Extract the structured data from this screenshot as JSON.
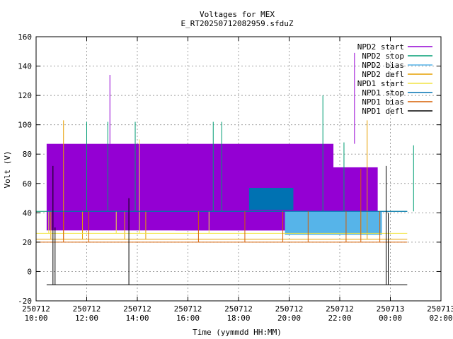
{
  "chart_data": {
    "type": "line",
    "title": "Voltages for MEX",
    "subtitle": "E_RT20250712082959.sfduZ",
    "xlabel": "Time (yymmdd HH:MM)",
    "ylabel": "Volt (V)",
    "xlim": [
      "2025-07-12 10:00",
      "2025-07-13 02:00"
    ],
    "ylim": [
      -20,
      160
    ],
    "grid": true,
    "legend_position": "top-right",
    "x_ticks": [
      {
        "date": "250712",
        "time": "10:00",
        "t": "2025-07-12 10:00"
      },
      {
        "date": "250712",
        "time": "12:00",
        "t": "2025-07-12 12:00"
      },
      {
        "date": "250712",
        "time": "14:00",
        "t": "2025-07-12 14:00"
      },
      {
        "date": "250712",
        "time": "16:00",
        "t": "2025-07-12 16:00"
      },
      {
        "date": "250712",
        "time": "18:00",
        "t": "2025-07-12 18:00"
      },
      {
        "date": "250712",
        "time": "20:00",
        "t": "2025-07-12 20:00"
      },
      {
        "date": "250712",
        "time": "22:00",
        "t": "2025-07-12 22:00"
      },
      {
        "date": "250713",
        "time": "00:00",
        "t": "2025-07-13 00:00"
      },
      {
        "date": "250713",
        "time": "02:00",
        "t": "2025-07-13 02:00"
      }
    ],
    "y_ticks": [
      -20,
      0,
      20,
      40,
      60,
      80,
      100,
      120,
      140,
      160
    ],
    "series": [
      {
        "name": "NPD2 start",
        "color": "#9400d3",
        "type": "band",
        "bands": [
          {
            "from": "2025-07-12 10:25",
            "to": "2025-07-12 21:45",
            "low": 28,
            "high": 87
          },
          {
            "from": "2025-07-12 15:30",
            "to": "2025-07-12 23:30",
            "low": 28,
            "high": 71
          }
        ],
        "spikes": [
          {
            "t": "2025-07-12 12:55",
            "v": 134
          },
          {
            "t": "2025-07-12 22:35",
            "v": 149
          }
        ]
      },
      {
        "name": "NPD2 stop",
        "color": "#009e73",
        "type": "spikes",
        "base": 41,
        "spikes": [
          {
            "t": "2025-07-12 12:00",
            "v": 102
          },
          {
            "t": "2025-07-12 12:50",
            "v": 102
          },
          {
            "t": "2025-07-12 13:55",
            "v": 102
          },
          {
            "t": "2025-07-12 17:00",
            "v": 102
          },
          {
            "t": "2025-07-12 17:20",
            "v": 102
          },
          {
            "t": "2025-07-12 21:20",
            "v": 120
          },
          {
            "t": "2025-07-12 22:10",
            "v": 88
          },
          {
            "t": "2025-07-13 00:55",
            "v": 86
          }
        ]
      },
      {
        "name": "NPD2 bias",
        "color": "#56b4e9",
        "type": "band",
        "bands": [
          {
            "from": "2025-07-12 19:50",
            "to": "2025-07-12 23:40",
            "low": 25,
            "high": 41
          }
        ],
        "spikes": []
      },
      {
        "name": "NPD2 defl",
        "color": "#e69f00",
        "type": "spikes",
        "base": 22,
        "spikes": [
          {
            "t": "2025-07-12 10:35",
            "v": 41
          },
          {
            "t": "2025-07-12 11:05",
            "v": 103
          },
          {
            "t": "2025-07-12 11:50",
            "v": 41
          },
          {
            "t": "2025-07-12 13:30",
            "v": 41
          },
          {
            "t": "2025-07-12 14:20",
            "v": 41
          },
          {
            "t": "2025-07-12 23:05",
            "v": 103
          }
        ]
      },
      {
        "name": "NPD1 start",
        "color": "#f0e442",
        "type": "spikes",
        "base": 26,
        "spikes": [
          {
            "t": "2025-07-12 10:30",
            "v": 41
          },
          {
            "t": "2025-07-12 13:10",
            "v": 41
          },
          {
            "t": "2025-07-12 14:05",
            "v": 90
          },
          {
            "t": "2025-07-12 16:50",
            "v": 41
          },
          {
            "t": "2025-07-12 22:50",
            "v": 41
          }
        ]
      },
      {
        "name": "NPD1 stop",
        "color": "#0072b2",
        "type": "band",
        "bands": [
          {
            "from": "2025-07-12 18:25",
            "to": "2025-07-12 20:10",
            "low": 42,
            "high": 57
          }
        ],
        "base": 41,
        "base_from": "2025-07-12 10:25",
        "base_to": "2025-07-13 00:40",
        "spikes": []
      },
      {
        "name": "NPD1 bias",
        "color": "#d55e00",
        "type": "spikes",
        "base": 20,
        "spikes": [
          {
            "t": "2025-07-12 11:05",
            "v": 41
          },
          {
            "t": "2025-07-12 12:05",
            "v": 41
          },
          {
            "t": "2025-07-12 16:25",
            "v": 41
          },
          {
            "t": "2025-07-12 18:15",
            "v": 41
          },
          {
            "t": "2025-07-12 19:45",
            "v": 41
          },
          {
            "t": "2025-07-12 20:45",
            "v": 41
          },
          {
            "t": "2025-07-12 22:50",
            "v": 70
          },
          {
            "t": "2025-07-12 22:15",
            "v": 41
          },
          {
            "t": "2025-07-12 23:35",
            "v": 41
          }
        ]
      },
      {
        "name": "NPD1 defl",
        "color": "#000000",
        "type": "spikes",
        "base": -9,
        "base_from": "2025-07-12 10:25",
        "base_to": "2025-07-13 00:40",
        "spikes": [
          {
            "t": "2025-07-12 10:40",
            "v": 72
          },
          {
            "t": "2025-07-12 10:45",
            "v": 30
          },
          {
            "t": "2025-07-12 13:40",
            "v": 50
          },
          {
            "t": "2025-07-12 23:50",
            "v": 72
          },
          {
            "t": "2025-07-12 23:55",
            "v": 40
          }
        ]
      }
    ]
  }
}
